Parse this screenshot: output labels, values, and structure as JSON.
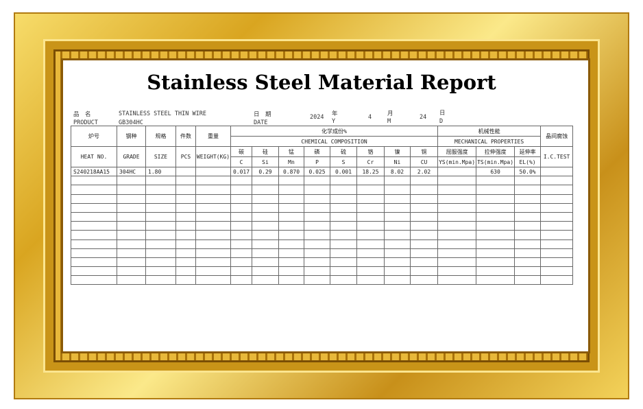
{
  "title": "Stainless Steel Material Report",
  "header": {
    "product_cn": "品　名",
    "product_en": "PRODUCT",
    "product_value": "STAINLESS STEEL THIN WIRE",
    "product_grade": "GB304HC",
    "date_cn": "日　期",
    "date_en": "DATE",
    "year": "2024",
    "year_cn": "年",
    "year_en": "Y",
    "month": "4",
    "month_cn": "月",
    "month_en": "M",
    "day": "24",
    "day_cn": "日",
    "day_en": "D"
  },
  "table": {
    "head": {
      "heat_cn": "炉号",
      "grade_cn": "钢种",
      "size_cn": "规格",
      "pcs_cn": "件数",
      "weight_cn": "重量",
      "chem_cn": "化学成份%",
      "chem_en": "CHEMICAL COMPOSITION",
      "mech_cn": "机械性能",
      "mech_en": "MECHANICAL PROPERTIES",
      "ic_cn": "晶间腐蚀",
      "heat_en": "HEAT NO.",
      "grade_en": "GRADE",
      "size_en": "SIZE",
      "pcs_en": "PCS",
      "weight_en": "WEIGHT(KG)",
      "ic_en": "I.C.TEST",
      "elements_cn": [
        "碳",
        "硅",
        "锰",
        "磷",
        "硫",
        "铬",
        "镍",
        "铜"
      ],
      "elements": [
        "C",
        "Si",
        "Mn",
        "P",
        "S",
        "Cr",
        "Ni",
        "CU"
      ],
      "mech_cols_cn": [
        "屈服强度",
        "拉伸强度",
        "延伸率"
      ],
      "mech_cols": [
        "YS(min.Mpa)",
        "TS(min.Mpa)",
        "EL(%)"
      ]
    },
    "rows": [
      {
        "heat_no": "S240218AA15",
        "grade": "304HC",
        "size": "1.80",
        "c": "0.017",
        "si": "0.29",
        "mn": "0.870",
        "p": "0.025",
        "s": "0.001",
        "cr": "18.25",
        "ni": "8.02",
        "cu": "2.02",
        "ts": "630",
        "el": "50.0%"
      }
    ]
  }
}
